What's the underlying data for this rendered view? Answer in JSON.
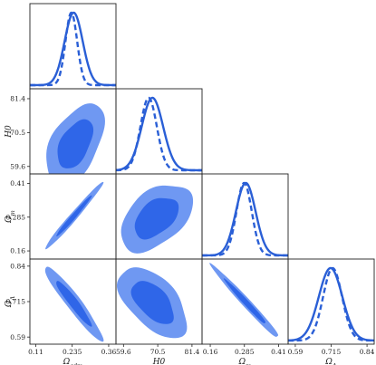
{
  "chart_data": {
    "type": "corner",
    "colors": {
      "line": "#2a5fd6",
      "contour_outer": "#6f98f2",
      "contour_inner": "#2f66e8"
    },
    "parameters": [
      {
        "key": "omega_cdm",
        "label": "Ω_cdm",
        "display_base": "Ω",
        "display_sub": "cdm",
        "range": [
          0.09,
          0.385
        ],
        "ticks": [
          0.11,
          0.235,
          0.36
        ],
        "tick_labels": [
          "0.11",
          "0.235",
          "0.36"
        ]
      },
      {
        "key": "h0",
        "label": "H0",
        "display_base": "H0",
        "display_sub": "",
        "range": [
          57.2,
          84.6
        ],
        "ticks": [
          59.6,
          70.5,
          81.4
        ],
        "tick_labels": [
          "59.6",
          "70.5",
          "81.4"
        ]
      },
      {
        "key": "omega_m",
        "label": "Ω_m",
        "display_base": "Ω",
        "display_sub": "m",
        "range": [
          0.13,
          0.445
        ],
        "ticks": [
          0.16,
          0.285,
          0.41
        ],
        "tick_labels": [
          "0.16",
          "0.285",
          "0.41"
        ]
      },
      {
        "key": "omega_lambda",
        "label": "Ω_Λ",
        "display_base": "Ω",
        "display_sub": "Λ",
        "range": [
          0.565,
          0.865
        ],
        "ticks": [
          0.59,
          0.715,
          0.84
        ],
        "tick_labels": [
          "0.59",
          "0.715",
          "0.84"
        ]
      }
    ],
    "marginals": [
      {
        "param": "omega_cdm",
        "solid": {
          "mean": 0.24,
          "sd": 0.031
        },
        "dashed": {
          "mean": 0.232,
          "sd": 0.02
        }
      },
      {
        "param": "h0",
        "solid": {
          "mean": 68.8,
          "sd": 3.4
        },
        "dashed": {
          "mean": 67.6,
          "sd": 2.6
        }
      },
      {
        "param": "omega_m",
        "solid": {
          "mean": 0.29,
          "sd": 0.036
        },
        "dashed": {
          "mean": 0.284,
          "sd": 0.028
        }
      },
      {
        "param": "omega_lambda",
        "solid": {
          "mean": 0.713,
          "sd": 0.041
        },
        "dashed": {
          "mean": 0.72,
          "sd": 0.033
        }
      }
    ],
    "contours": [
      {
        "x": "omega_cdm",
        "y": "h0",
        "center": [
          0.245,
          66.8
        ],
        "sd": [
          0.04,
          5.2
        ],
        "rho": 0.48
      },
      {
        "x": "omega_cdm",
        "y": "omega_m",
        "center": [
          0.24,
          0.288
        ],
        "sd": [
          0.04,
          0.05
        ],
        "rho": 0.985
      },
      {
        "x": "h0",
        "y": "omega_m",
        "center": [
          70.0,
          0.283
        ],
        "sd": [
          4.6,
          0.05
        ],
        "rho": 0.45
      },
      {
        "x": "omega_cdm",
        "y": "omega_lambda",
        "center": [
          0.24,
          0.71
        ],
        "sd": [
          0.04,
          0.053
        ],
        "rho": -0.95
      },
      {
        "x": "h0",
        "y": "omega_lambda",
        "center": [
          69.0,
          0.713
        ],
        "sd": [
          4.4,
          0.05
        ],
        "rho": -0.55
      },
      {
        "x": "omega_m",
        "y": "omega_lambda",
        "center": [
          0.29,
          0.713
        ],
        "sd": [
          0.05,
          0.052
        ],
        "rho": -0.985
      }
    ],
    "contour_levels_sigma": [
      1.52,
      2.49
    ],
    "grid": false,
    "legend": "none"
  }
}
